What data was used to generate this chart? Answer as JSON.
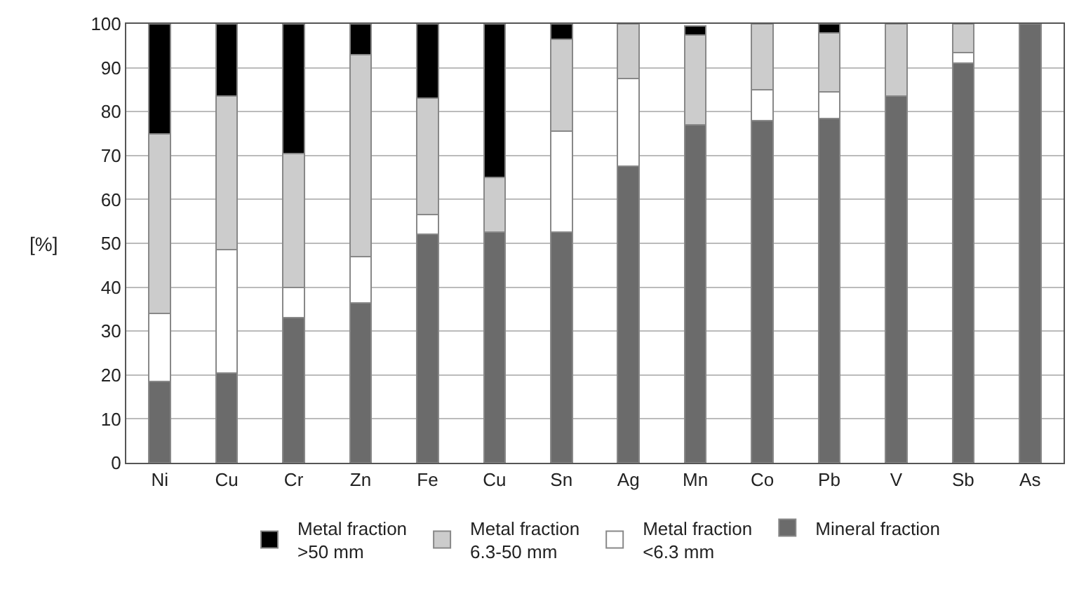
{
  "chart_data": {
    "type": "bar",
    "stacked": true,
    "ylabel": "[%]",
    "categories": [
      "Ni",
      "Cu",
      "Cr",
      "Zn",
      "Fe",
      "Cu",
      "Sn",
      "Ag",
      "Mn",
      "Co",
      "Pb",
      "V",
      "Sb",
      "As"
    ],
    "series": [
      {
        "name": "Mineral fraction",
        "color": "#6b6b6b",
        "values": [
          18.5,
          20.5,
          33,
          36.5,
          52,
          52.5,
          52.5,
          67.5,
          77,
          78,
          78.5,
          83.5,
          91,
          100
        ]
      },
      {
        "name": "Metal fraction\n<6.3 mm",
        "color": "#ffffff",
        "values": [
          15.5,
          28,
          7,
          10.5,
          4.5,
          0,
          23,
          20,
          0,
          7,
          6,
          0,
          2.5,
          0
        ]
      },
      {
        "name": "Metal fraction\n6.3-50 mm",
        "color": "#cccccc",
        "values": [
          41,
          35,
          30.5,
          46,
          26.5,
          12.5,
          21,
          12.5,
          20.5,
          15,
          13.5,
          16.5,
          6.5,
          0
        ]
      },
      {
        "name": "Metal fraction\n>50 mm",
        "color": "#000000",
        "values": [
          25,
          16.5,
          29.5,
          7,
          17,
          35,
          3.5,
          0,
          2,
          0,
          2,
          0,
          0,
          0
        ]
      }
    ],
    "ylim": [
      0,
      100
    ],
    "yticks": [
      0,
      10,
      20,
      30,
      40,
      50,
      60,
      70,
      80,
      90,
      100
    ],
    "grid": "y",
    "legend": "bottom"
  }
}
